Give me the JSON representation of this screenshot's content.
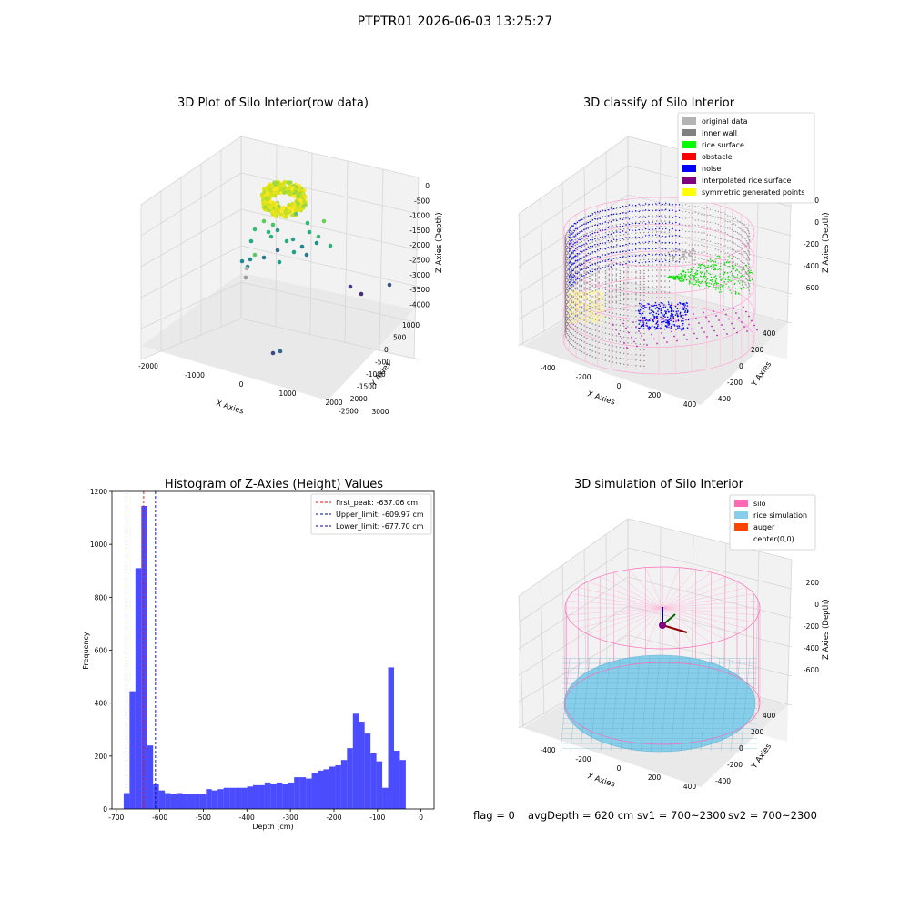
{
  "suptitle": "PTPTR01 2026-06-03 13:25:27",
  "chart_data": [
    {
      "type": "scatter3d",
      "title": "3D Plot of Silo Interior(row data)",
      "xlabel": "X Axies",
      "ylabel": "Y Axies",
      "zlabel": "Z Axies (Depth)",
      "xticks": [
        "-2000",
        "-1000",
        "0",
        "1000",
        "2000",
        "3000"
      ],
      "yticks": [
        "1000",
        "500",
        "0",
        "-500",
        "-1000",
        "-1500",
        "-2000",
        "-2500"
      ],
      "zticks": [
        "0",
        "-500",
        "-1000",
        "-1500",
        "-2000",
        "-2500",
        "-3000",
        "-3500",
        "-4000"
      ],
      "xlim": [
        -2500,
        3300
      ],
      "ylim": [
        -2600,
        1200
      ],
      "zlim": [
        -4100,
        100
      ],
      "colormap": "viridis",
      "points": [
        {
          "x": 0,
          "y": 0,
          "z": -600,
          "color": "#f4e61e",
          "count": "dense ring"
        },
        {
          "x": -150,
          "y": 100,
          "z": -1200,
          "color": "#5ec962"
        },
        {
          "x": 300,
          "y": -200,
          "z": -1500,
          "color": "#35b779"
        },
        {
          "x": -600,
          "y": 300,
          "z": -2300,
          "color": "#21918c"
        },
        {
          "x": 2200,
          "y": -600,
          "z": -3500,
          "color": "#443983"
        },
        {
          "x": 400,
          "y": -1800,
          "z": -4000,
          "color": "#31688e"
        }
      ]
    },
    {
      "type": "scatter3d",
      "title": "3D classify of Silo Interior",
      "xlabel": "X Axies",
      "ylabel": "Y Axies",
      "zlabel": "Z Axies (Depth)",
      "xticks": [
        "-400",
        "-200",
        "0",
        "200",
        "400"
      ],
      "yticks": [
        "400",
        "200",
        "0",
        "-200",
        "-400"
      ],
      "zticks": [
        "200",
        "0",
        "-200",
        "-400",
        "-600"
      ],
      "xlim": [
        -500,
        500
      ],
      "ylim": [
        -500,
        500
      ],
      "zlim": [
        -700,
        250
      ],
      "legend": [
        {
          "label": "original data",
          "color": "#b4b4b4"
        },
        {
          "label": "inner wall",
          "color": "#808080"
        },
        {
          "label": "rice surface",
          "color": "#00ff00"
        },
        {
          "label": "obstacle",
          "color": "#ff0000"
        },
        {
          "label": "noise",
          "color": "#0000ff"
        },
        {
          "label": "interpolated rice surface",
          "color": "#800080"
        },
        {
          "label": "symmetric generated points",
          "color": "#ffff00"
        }
      ],
      "legend_position": "upper right",
      "silo_radius": 460
    },
    {
      "type": "bar",
      "title": "Histogram of Z-Axies (Height) Values",
      "xlabel": "Depth (cm)",
      "ylabel": "Frequency",
      "xlim": [
        -710,
        30
      ],
      "ylim": [
        0,
        1200
      ],
      "xticks": [
        -700,
        -600,
        -500,
        -400,
        -300,
        -200,
        -100,
        0
      ],
      "yticks": [
        0,
        200,
        400,
        600,
        800,
        1000,
        1200
      ],
      "bar_color": "#0000ff",
      "bin_width": 13.5,
      "bin_start": -683,
      "values": [
        60,
        445,
        910,
        1145,
        240,
        95,
        70,
        60,
        55,
        60,
        55,
        55,
        55,
        55,
        75,
        70,
        75,
        80,
        80,
        80,
        80,
        85,
        90,
        90,
        100,
        95,
        100,
        95,
        100,
        120,
        120,
        115,
        135,
        145,
        150,
        160,
        165,
        185,
        230,
        360,
        330,
        285,
        210,
        180,
        80,
        535,
        220,
        185
      ],
      "vlines": [
        {
          "x": -637.06,
          "color": "#ff0000",
          "label": "first_peak: -637.06 cm"
        },
        {
          "x": -609.97,
          "color": "#0000aa",
          "label": "Upper_limit: -609.97 cm"
        },
        {
          "x": -677.7,
          "color": "#0000aa",
          "label": "Lower_limit: -677.70 cm"
        }
      ],
      "legend_position": "upper right"
    },
    {
      "type": "surface3d",
      "title": "3D simulation of Silo Interior",
      "xlabel": "X Axies",
      "ylabel": "Y Axies",
      "zlabel": "Z Axies (Depth)",
      "xticks": [
        "-400",
        "-200",
        "0",
        "200",
        "400"
      ],
      "yticks": [
        "400",
        "200",
        "0",
        "-200",
        "-400"
      ],
      "zticks": [
        "200",
        "0",
        "-200",
        "-400",
        "-600"
      ],
      "xlim": [
        -500,
        500
      ],
      "ylim": [
        -500,
        500
      ],
      "zlim": [
        -700,
        250
      ],
      "legend": [
        {
          "label": "silo",
          "color": "#ff69b4"
        },
        {
          "label": "rice simulation",
          "color": "#87ceeb"
        },
        {
          "label": "auger",
          "color": "#ff4500"
        },
        {
          "label": "center(0,0)",
          "color": "#ffffff"
        }
      ],
      "legend_position": "upper right",
      "silo_radius": 460,
      "rice_depth": -620
    }
  ],
  "footer": {
    "flag": "flag = 0",
    "avg": "avgDepth = 620 cm",
    "sv1": "sv1 = 700~2300",
    "sv2": "sv2 = 700~2300"
  }
}
